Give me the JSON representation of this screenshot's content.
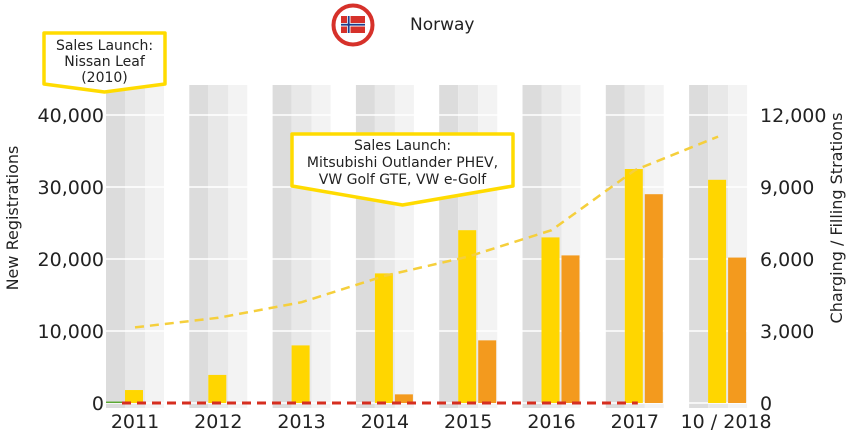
{
  "header": {
    "country": "Norway",
    "flag_icon": "norway-flag-icon"
  },
  "chart_data": {
    "type": "bar",
    "categories": [
      "2011",
      "2012",
      "2013",
      "2014",
      "2015",
      "2016",
      "2017",
      "10 / 2018"
    ],
    "ylabel": "New Registrations",
    "y2label": "Charging / Filling Strations",
    "ylim": [
      0,
      40000
    ],
    "y2lim": [
      0,
      12000
    ],
    "yticks": [
      "0",
      "10,000",
      "20,000",
      "30,000",
      "40,000"
    ],
    "y2ticks": [
      "0",
      "3,000",
      "6,000",
      "9,000",
      "12,000"
    ],
    "grid": true,
    "series": [
      {
        "axis": "left",
        "kind": "bar",
        "color": "#ffd600",
        "values": [
          1800,
          3900,
          8000,
          18000,
          24000,
          23000,
          32500,
          31000
        ]
      },
      {
        "axis": "left",
        "kind": "bar",
        "color": "#f39a1e",
        "values": [
          0,
          0,
          0,
          1200,
          8700,
          20500,
          29000,
          20200
        ]
      },
      {
        "axis": "left",
        "kind": "bar",
        "color": "#5aa832",
        "values": [
          200,
          0,
          0,
          0,
          0,
          0,
          0,
          0
        ]
      },
      {
        "axis": "left",
        "kind": "line",
        "style": "dashed",
        "color": "#d62e1f",
        "values": [
          0,
          0,
          0,
          0,
          0,
          0,
          0,
          0
        ]
      },
      {
        "axis": "right",
        "kind": "line",
        "style": "dashed",
        "color": "#f5cf3c",
        "values": [
          3150,
          3550,
          4200,
          5300,
          6100,
          7200,
          9700,
          11100
        ]
      }
    ],
    "annotations": [
      {
        "text": [
          "Sales Launch:",
          "Nissan Leaf",
          "(2010)"
        ],
        "category": "2011"
      },
      {
        "text": [
          "Sales Launch:",
          "Mitsubishi Outlander PHEV,",
          "VW Golf GTE, VW e-Golf"
        ],
        "category": "2014"
      }
    ]
  }
}
